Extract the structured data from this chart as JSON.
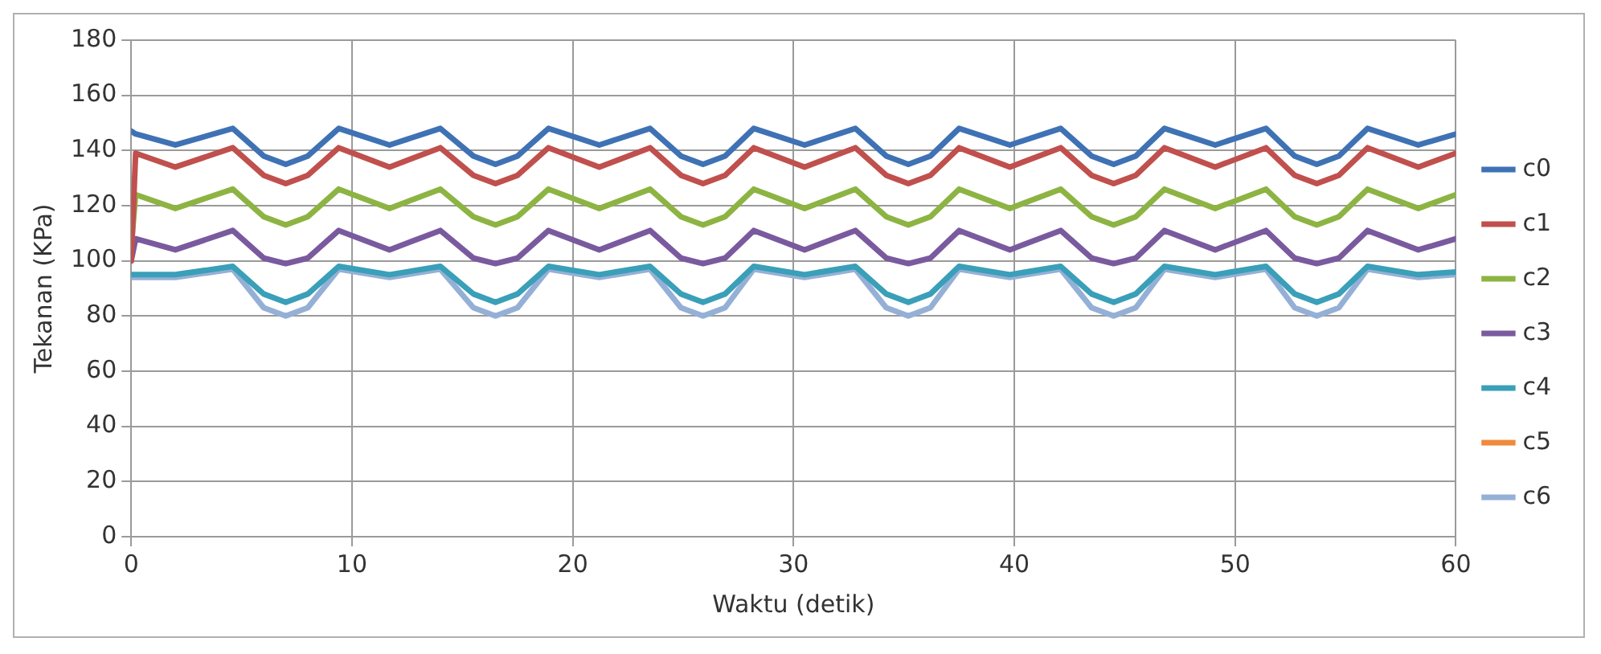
{
  "chart_data": {
    "type": "line",
    "xlabel": "Waktu (detik)",
    "ylabel": "Tekanan (KPa)",
    "x": [
      0,
      0.2,
      2,
      4.6,
      6,
      7,
      8,
      9.4,
      11.7,
      14,
      15.5,
      16.5,
      17.5,
      18.9,
      21.2,
      23.5,
      24.9,
      25.9,
      26.9,
      28.2,
      30.5,
      32.8,
      34.2,
      35.2,
      36.2,
      37.5,
      39.8,
      42.1,
      43.5,
      44.5,
      45.5,
      46.8,
      49.1,
      51.4,
      52.7,
      53.7,
      54.7,
      56,
      58.3,
      60
    ],
    "xlim": [
      0,
      60
    ],
    "xticks": [
      0,
      10,
      20,
      30,
      40,
      50,
      60
    ],
    "ylim": [
      0,
      180
    ],
    "yticks": [
      0,
      20,
      40,
      60,
      80,
      100,
      120,
      140,
      160,
      180
    ],
    "grid": true,
    "legend": "right",
    "marker": "none",
    "line_style": "solid",
    "series": [
      {
        "name": "c0",
        "color": "#3f72b4",
        "values": [
          147,
          146,
          142,
          148,
          138,
          135,
          138,
          148,
          142,
          148,
          138,
          135,
          138,
          148,
          142,
          148,
          138,
          135,
          138,
          148,
          142,
          148,
          138,
          135,
          138,
          148,
          142,
          148,
          138,
          135,
          138,
          148,
          142,
          148,
          138,
          135,
          138,
          148,
          142,
          146
        ]
      },
      {
        "name": "c1",
        "color": "#c0504d",
        "values": [
          100,
          139,
          134,
          141,
          131,
          128,
          131,
          141,
          134,
          141,
          131,
          128,
          131,
          141,
          134,
          141,
          131,
          128,
          131,
          141,
          134,
          141,
          131,
          128,
          131,
          141,
          134,
          141,
          131,
          128,
          131,
          141,
          134,
          141,
          131,
          128,
          131,
          141,
          134,
          139
        ]
      },
      {
        "name": "c2",
        "color": "#8db443",
        "values": [
          105,
          124,
          119,
          126,
          116,
          113,
          116,
          126,
          119,
          126,
          116,
          113,
          116,
          126,
          119,
          126,
          116,
          113,
          116,
          126,
          119,
          126,
          116,
          113,
          116,
          126,
          119,
          126,
          116,
          113,
          116,
          126,
          119,
          126,
          116,
          113,
          116,
          126,
          119,
          124
        ]
      },
      {
        "name": "c3",
        "color": "#7a5a9e",
        "values": [
          100,
          108,
          104,
          111,
          101,
          99,
          101,
          111,
          104,
          111,
          101,
          99,
          101,
          111,
          104,
          111,
          101,
          99,
          101,
          111,
          104,
          111,
          101,
          99,
          101,
          111,
          104,
          111,
          101,
          99,
          101,
          111,
          104,
          111,
          101,
          99,
          101,
          111,
          104,
          108
        ]
      },
      {
        "name": "c4",
        "color": "#3a9fb8",
        "values": [
          95,
          95,
          95,
          98,
          88,
          85,
          88,
          98,
          95,
          98,
          88,
          85,
          88,
          98,
          95,
          98,
          88,
          85,
          88,
          98,
          95,
          98,
          88,
          85,
          88,
          98,
          95,
          98,
          88,
          85,
          88,
          98,
          95,
          98,
          88,
          85,
          88,
          98,
          95,
          96
        ]
      },
      {
        "name": "c5",
        "color": "#f08a3c",
        "values": [
          null,
          null,
          null,
          null,
          null,
          null,
          null,
          null,
          null,
          null,
          null,
          null,
          null,
          null,
          null,
          null,
          null,
          null,
          null,
          null,
          null,
          null,
          null,
          null,
          null,
          null,
          null,
          null,
          null,
          null,
          null,
          null,
          null,
          null,
          null,
          null,
          null,
          null,
          null,
          null
        ]
      },
      {
        "name": "c6",
        "color": "#95b0d6",
        "values": [
          94,
          94,
          94,
          97,
          83,
          80,
          83,
          97,
          94,
          97,
          83,
          80,
          83,
          97,
          94,
          97,
          83,
          80,
          83,
          97,
          94,
          97,
          83,
          80,
          83,
          97,
          94,
          97,
          83,
          80,
          83,
          97,
          94,
          97,
          83,
          80,
          83,
          97,
          94,
          95
        ]
      }
    ]
  }
}
